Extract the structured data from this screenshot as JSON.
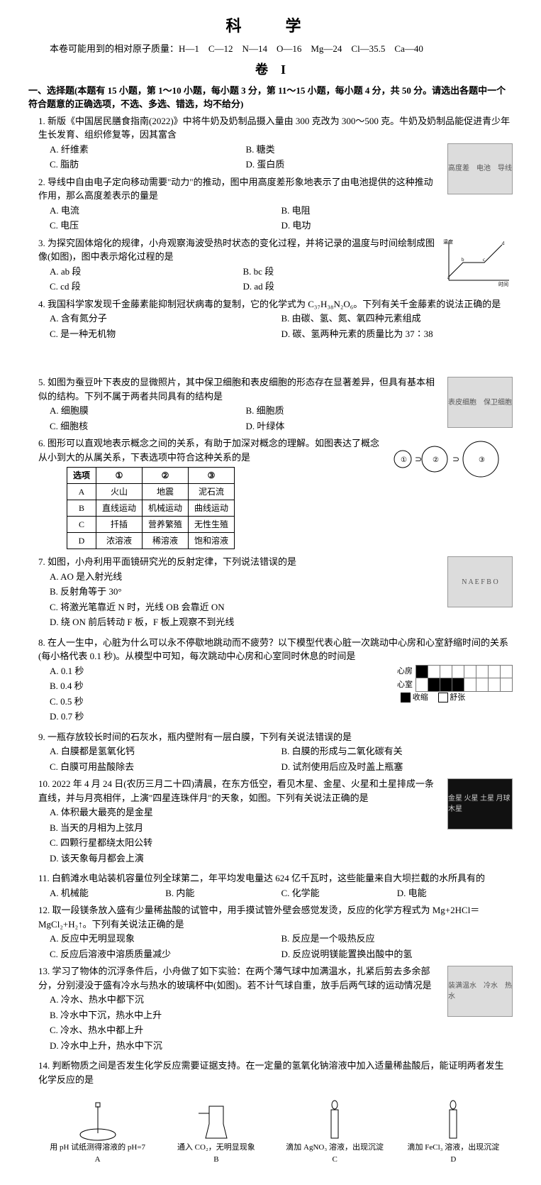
{
  "header": {
    "title": "科　学",
    "atomic_line": "本卷可能用到的相对原子质量：H—1　C—12　N—14　O—16　Mg—24　Cl—35.5　Ca—40",
    "paper_label": "卷　I"
  },
  "section1": {
    "heading": "一、选择题(本题有 15 小题，第 1～10 小题，每小题 3 分，第 11～15 小题，每小题 4 分，共 50 分。请选出各题中一个符合题意的正确选项，不选、多选、错选，均不给分)"
  },
  "q1": {
    "stem": "1. 新版《中国居民膳食指南(2022)》中将牛奶及奶制品摄入量由 300 克改为 300～500 克。牛奶及奶制品能促进青少年生长发育、组织修复等，因其富含",
    "a": "A. 纤维素",
    "b": "B. 糖类",
    "c": "C. 脂肪",
    "d": "D. 蛋白质"
  },
  "q2": {
    "stem": "2. 导线中自由电子定向移动需要\"动力\"的推动，图中用高度差形象地表示了由电池提供的这种推动作用，那么高度差表示的量是",
    "a": "A. 电流",
    "b": "B. 电阻",
    "c": "C. 电压",
    "d": "D. 电功",
    "fig_labels": "高度差　电池　导线"
  },
  "q3": {
    "stem": "3. 为探究固体熔化的规律，小舟观察海波受热时状态的变化过程，并将记录的温度与时间绘制成图像(如图)，图中表示熔化过程的是",
    "a": "A. ab 段",
    "b": "B. bc 段",
    "c": "C. cd 段",
    "d": "D. ad 段",
    "graph": {
      "xlabel": "时间",
      "ylabel": "温度",
      "points": [
        "a",
        "b",
        "c",
        "d"
      ],
      "line_color": "#000000"
    }
  },
  "q4": {
    "stem": "4. 我国科学家发现千金藤素能抑制冠状病毒的复制，它的化学式为 C₃₇H₃₈N₂O₆。下列有关千金藤素的说法正确的是",
    "a": "A. 含有氮分子",
    "b": "B. 由碳、氢、氮、氧四种元素组成",
    "c": "C. 是一种无机物",
    "d": "D. 碳、氢两种元素的质量比为 37∶38"
  },
  "q5": {
    "stem": "5. 如图为蚕豆叶下表皮的显微照片，其中保卫细胞和表皮细胞的形态存在显著差异，但具有基本相似的结构。下列不属于两者共同具有的结构是",
    "a": "A. 细胞膜",
    "b": "B. 细胞质",
    "c": "C. 细胞核",
    "d": "D. 叶绿体",
    "fig_labels": "表皮细胞　保卫细胞"
  },
  "q6": {
    "stem": "6. 图形可以直观地表示概念之间的关系，有助于加深对概念的理解。如图表达了概念从小到大的从属关系，下表选项中符合这种关系的是",
    "table": {
      "head": [
        "选项",
        "①",
        "②",
        "③"
      ],
      "rows": [
        [
          "A",
          "火山",
          "地震",
          "泥石流"
        ],
        [
          "B",
          "直线运动",
          "机械运动",
          "曲线运动"
        ],
        [
          "C",
          "扦插",
          "营养繁殖",
          "无性生殖"
        ],
        [
          "D",
          "浓溶液",
          "稀溶液",
          "饱和溶液"
        ]
      ]
    },
    "venn_labels": [
      "①",
      "②",
      "③"
    ]
  },
  "q7": {
    "stem": "7. 如图，小舟利用平面镜研究光的反射定律，下列说法错误的是",
    "a": "A. AO 是入射光线",
    "b": "B. 反射角等于 30°",
    "c": "C. 将激光笔靠近 N 时，光线 OB 会靠近 ON",
    "d": "D. 绕 ON 前后转动 F 板，F 板上观察不到光线",
    "fig_labels": "N A E F B O"
  },
  "q8": {
    "stem": "8. 在人一生中，心脏为什么可以永不停歇地跳动而不疲劳？以下模型代表心脏一次跳动中心房和心室舒缩时间的关系(每小格代表 0.1 秒)。从模型中可知，每次跳动中心房和心室同时休息的时间是",
    "a": "A. 0.1 秒",
    "b": "B. 0.4 秒",
    "c": "C. 0.5 秒",
    "d": "D. 0.7 秒",
    "rows": [
      "心房",
      "心室"
    ],
    "legend": [
      "收缩",
      "舒张"
    ],
    "grid": {
      "cols": 8,
      "atrium_filled": [
        0
      ],
      "ventricle_filled": [
        1,
        2,
        3
      ]
    }
  },
  "q9": {
    "stem": "9. 一瓶存放较长时间的石灰水，瓶内壁附有一层白膜，下列有关说法错误的是",
    "a": "A. 白膜都是氢氧化钙",
    "b": "B. 白膜的形成与二氧化碳有关",
    "c": "C. 白膜可用盐酸除去",
    "d": "D. 试剂使用后应及时盖上瓶塞"
  },
  "q10": {
    "stem": "10. 2022 年 4 月 24 日(农历三月二十四)清晨，在东方低空，看见木星、金星、火星和土星排成一条直线，并与月亮相伴，上演\"四星连珠伴月\"的天象，如图。下列有关说法正确的是",
    "a": "A. 体积最大最亮的是金星",
    "b": "B. 当天的月相为上弦月",
    "c": "C. 四颗行星都绕太阳公转",
    "d": "D. 该天象每月都会上演",
    "fig_labels": "金星 火星 土星 月球 木星"
  },
  "q11": {
    "stem": "11. 白鹤滩水电站装机容量位列全球第二，年平均发电量达 624 亿千瓦时，这些能量来自大坝拦截的水所具有的",
    "a": "A. 机械能",
    "b": "B. 内能",
    "c": "C. 化学能",
    "d": "D. 电能"
  },
  "q12": {
    "stem": "12. 取一段镁条放入盛有少量稀盐酸的试管中，用手摸试管外壁会感觉发烫，反应的化学方程式为 Mg+2HCl＝MgCl₂+H₂↑。下列有关说法正确的是",
    "a": "A. 反应中无明显现象",
    "b": "B. 反应是一个吸热反应",
    "c": "C. 反应后溶液中溶质质量减少",
    "d": "D. 反应说明镁能置换出酸中的氢"
  },
  "q13": {
    "stem": "13. 学习了物体的沉浮条件后，小舟做了如下实验：在两个薄气球中加满温水，扎紧后剪去多余部分，分别浸没于盛有冷水与热水的玻璃杯中(如图)。若不计气球自重，放手后两气球的运动情况是",
    "a": "A. 冷水、热水中都下沉",
    "b": "B. 冷水中下沉，热水中上升",
    "c": "C. 冷水、热水中都上升",
    "d": "D. 冷水中上升，热水中下沉",
    "fig_labels": "装满温水　冷水　热水"
  },
  "q14": {
    "stem": "14. 判断物质之间是否发生化学反应需要证据支持。在一定量的氢氧化钠溶液中加入适量稀盐酸后，能证明两者发生化学反应的是",
    "experiments": {
      "A": "用 pH 试纸测得溶液的 pH=7",
      "B": "通入 CO₂，无明显现象",
      "C": "滴加 AgNO₃ 溶液，出现沉淀",
      "D": "滴加 FeCl₃ 溶液，出现沉淀"
    }
  }
}
